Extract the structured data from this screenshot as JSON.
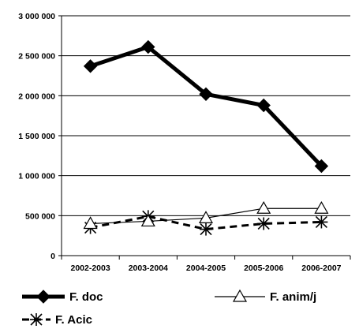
{
  "chart_data": {
    "type": "line",
    "categories": [
      "2002-2003",
      "2003-2004",
      "2004-2005",
      "2005-2006",
      "2006-2007"
    ],
    "y_ticks": [
      "0",
      "500 000",
      "1 000 000",
      "1 500 000",
      "2 000 000",
      "2 500 000",
      "3 000 000"
    ],
    "ylim": [
      0,
      3000000
    ],
    "grid": true,
    "legend_position": "bottom",
    "series": [
      {
        "name": "F. doc",
        "values": [
          2370000,
          2610000,
          2020000,
          1880000,
          1120000
        ],
        "style": "thick-solid",
        "marker": "diamond-filled",
        "color": "#000000"
      },
      {
        "name": "F. anim/j",
        "values": [
          400000,
          430000,
          470000,
          590000,
          590000
        ],
        "style": "thin-solid",
        "marker": "triangle-open",
        "color": "#000000"
      },
      {
        "name": "F. Acic",
        "values": [
          350000,
          490000,
          330000,
          400000,
          420000
        ],
        "style": "dashed",
        "marker": "asterisk",
        "color": "#000000"
      }
    ]
  }
}
